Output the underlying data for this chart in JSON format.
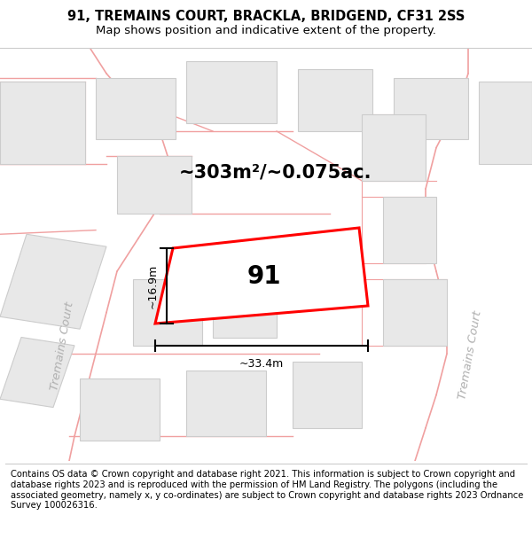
{
  "title_line1": "91, TREMAINS COURT, BRACKLA, BRIDGEND, CF31 2SS",
  "title_line2": "Map shows position and indicative extent of the property.",
  "footer_text": "Contains OS data © Crown copyright and database right 2021. This information is subject to Crown copyright and database rights 2023 and is reproduced with the permission of HM Land Registry. The polygons (including the associated geometry, namely x, y co-ordinates) are subject to Crown copyright and database rights 2023 Ordnance Survey 100026316.",
  "area_text": "~303m²/~0.075ac.",
  "label_91": "91",
  "dim_width": "~33.4m",
  "dim_height": "~16.9m",
  "bg_color": "#ffffff",
  "map_bg": "#ffffff",
  "plot_fill": "#e8e8e8",
  "highlight_fill": "#ffffff",
  "road_color": "#f0a0a0",
  "plot_outline": "#cccccc",
  "highlight_outline": "#ff0000",
  "text_color": "#000000",
  "dim_color": "#000000",
  "street_label_color": "#b0b0b0",
  "title_fontsize": 10.5,
  "subtitle_fontsize": 9.5,
  "footer_fontsize": 7.2,
  "area_fontsize": 15,
  "label_fontsize": 20,
  "dim_fontsize": 9,
  "street_fontsize": 9.5
}
